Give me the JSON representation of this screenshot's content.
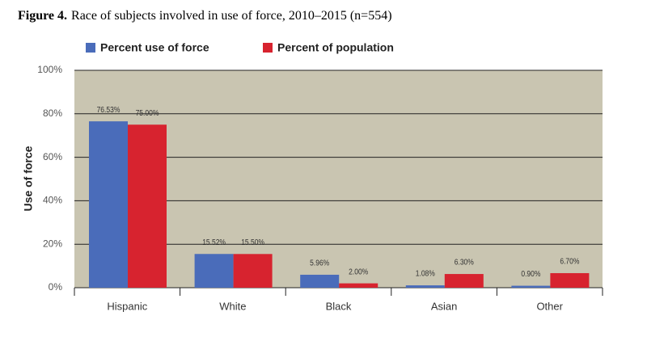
{
  "chart_data": {
    "type": "bar",
    "figure_label": "Figure 4.",
    "title": "Race of subjects involved in use of force, 2010–2015 (n=554)",
    "y_label": "Use of force",
    "categories": [
      "Hispanic",
      "White",
      "Black",
      "Asian",
      "Other"
    ],
    "series": [
      {
        "name": "Percent use of force",
        "color": "#4a6cba",
        "values": [
          76.53,
          15.52,
          5.96,
          1.08,
          0.9
        ],
        "value_labels": [
          "76.53%",
          "15.52%",
          "5.96%",
          "1.08%",
          "0.90%"
        ]
      },
      {
        "name": "Percent of population",
        "color": "#d7232f",
        "values": [
          75.0,
          15.5,
          2.0,
          6.3,
          6.7
        ],
        "value_labels": [
          "75.00%",
          "15.50%",
          "2.00%",
          "6.30%",
          "6.70%"
        ]
      }
    ],
    "ylim": [
      0,
      100
    ],
    "yticks": [
      {
        "value": 0,
        "label": "0%"
      },
      {
        "value": 20,
        "label": "20%"
      },
      {
        "value": 40,
        "label": "40%"
      },
      {
        "value": 60,
        "label": "60%"
      },
      {
        "value": 80,
        "label": "80%"
      },
      {
        "value": 100,
        "label": "100%"
      }
    ],
    "grid": true,
    "legend": "top"
  }
}
